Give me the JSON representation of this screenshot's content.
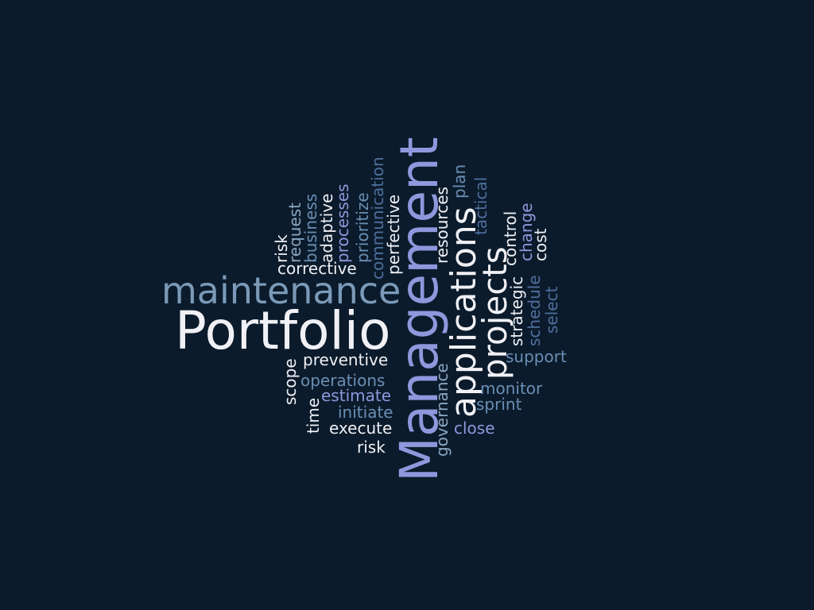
{
  "palette": {
    "background": "#0b1b2b",
    "white": "#f0f0f5",
    "light_blue": "#8aa6c1",
    "steel_blue": "#6b8fb5",
    "periwinkle": "#8e98dd",
    "dark_blue": "#4f6f9e"
  },
  "words": {
    "portfolio": "Portfolio",
    "management": "Management",
    "maintenance": "maintenance",
    "applications": "applications",
    "projects": "projects",
    "risk_vertical": "risk",
    "request": "request",
    "business": "business",
    "adaptive": "adaptive",
    "processes": "processes",
    "prioritize": "prioritize",
    "communication": "communication",
    "perfective": "perfective",
    "resources": "resources",
    "plan": "plan",
    "tactical": "tactical",
    "control": "control",
    "change": "change",
    "cost": "cost",
    "corrective": "corrective",
    "strategic": "strategic",
    "schedule": "schedule",
    "select": "select",
    "preventive": "preventive",
    "scope": "scope",
    "operations": "operations",
    "time": "time",
    "estimate": "estimate",
    "initiate": "initiate",
    "execute": "execute",
    "risk": "risk",
    "governance": "governance",
    "support": "support",
    "monitor": "monitor",
    "sprint": "sprint",
    "close": "close"
  }
}
